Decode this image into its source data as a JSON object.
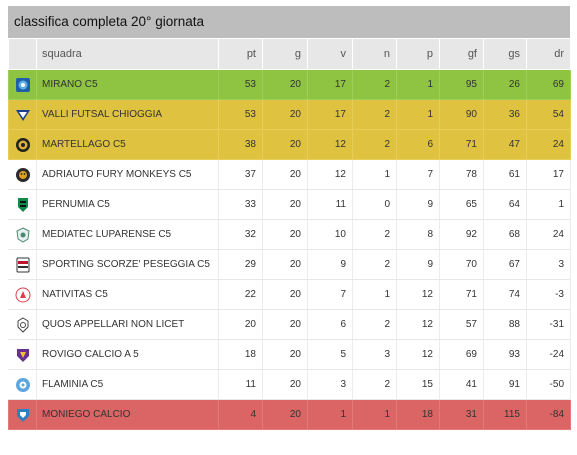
{
  "title": "classifica completa 20° giornata",
  "columns": {
    "squadra": "squadra",
    "pt": "pt",
    "g": "g",
    "v": "v",
    "n": "n",
    "p": "p",
    "gf": "gf",
    "gs": "gs",
    "dr": "dr"
  },
  "rows": [
    {
      "team": "MIRANO C5",
      "pt": "53",
      "g": "20",
      "v": "17",
      "n": "2",
      "p": "1",
      "gf": "95",
      "gs": "26",
      "dr": "69",
      "highlight": "green",
      "logo": "mirano-logo-icon"
    },
    {
      "team": "VALLI FUTSAL CHIOGGIA",
      "pt": "53",
      "g": "20",
      "v": "17",
      "n": "2",
      "p": "1",
      "gf": "90",
      "gs": "36",
      "dr": "54",
      "highlight": "yellow",
      "logo": "valli-logo-icon"
    },
    {
      "team": "MARTELLAGO C5",
      "pt": "38",
      "g": "20",
      "v": "12",
      "n": "2",
      "p": "6",
      "gf": "71",
      "gs": "47",
      "dr": "24",
      "highlight": "yellow",
      "logo": "martellago-logo-icon"
    },
    {
      "team": "ADRIAUTO FURY MONKEYS C5",
      "pt": "37",
      "g": "20",
      "v": "12",
      "n": "1",
      "p": "7",
      "gf": "78",
      "gs": "61",
      "dr": "17",
      "highlight": "none",
      "logo": "adriauto-logo-icon"
    },
    {
      "team": "PERNUMIA C5",
      "pt": "33",
      "g": "20",
      "v": "11",
      "n": "0",
      "p": "9",
      "gf": "65",
      "gs": "64",
      "dr": "1",
      "highlight": "none",
      "logo": "pernumia-logo-icon"
    },
    {
      "team": "MEDIATEC LUPARENSE C5",
      "pt": "32",
      "g": "20",
      "v": "10",
      "n": "2",
      "p": "8",
      "gf": "92",
      "gs": "68",
      "dr": "24",
      "highlight": "none",
      "logo": "luparense-logo-icon"
    },
    {
      "team": "SPORTING SCORZE' PESEGGIA C5",
      "pt": "29",
      "g": "20",
      "v": "9",
      "n": "2",
      "p": "9",
      "gf": "70",
      "gs": "67",
      "dr": "3",
      "highlight": "none",
      "logo": "sporting-logo-icon"
    },
    {
      "team": "NATIVITAS C5",
      "pt": "22",
      "g": "20",
      "v": "7",
      "n": "1",
      "p": "12",
      "gf": "71",
      "gs": "74",
      "dr": "-3",
      "highlight": "none",
      "logo": "nativitas-logo-icon"
    },
    {
      "team": "QUOS APPELLARI NON LICET",
      "pt": "20",
      "g": "20",
      "v": "6",
      "n": "2",
      "p": "12",
      "gf": "57",
      "gs": "88",
      "dr": "-31",
      "highlight": "none",
      "logo": "quos-logo-icon"
    },
    {
      "team": "ROVIGO CALCIO A 5",
      "pt": "18",
      "g": "20",
      "v": "5",
      "n": "3",
      "p": "12",
      "gf": "69",
      "gs": "93",
      "dr": "-24",
      "highlight": "none",
      "logo": "rovigo-logo-icon"
    },
    {
      "team": "FLAMINIA C5",
      "pt": "11",
      "g": "20",
      "v": "3",
      "n": "2",
      "p": "15",
      "gf": "41",
      "gs": "91",
      "dr": "-50",
      "highlight": "none",
      "logo": "flaminia-logo-icon"
    },
    {
      "team": "MONIEGO CALCIO",
      "pt": "4",
      "g": "20",
      "v": "1",
      "n": "1",
      "p": "18",
      "gf": "31",
      "gs": "115",
      "dr": "-84",
      "highlight": "red",
      "logo": "moniego-logo-icon"
    }
  ],
  "colors": {
    "green": "#8ec442",
    "yellow": "#dfc23f",
    "red": "#db6464",
    "header_bg": "#e7e7e7",
    "title_bg": "#bdbdbd"
  }
}
